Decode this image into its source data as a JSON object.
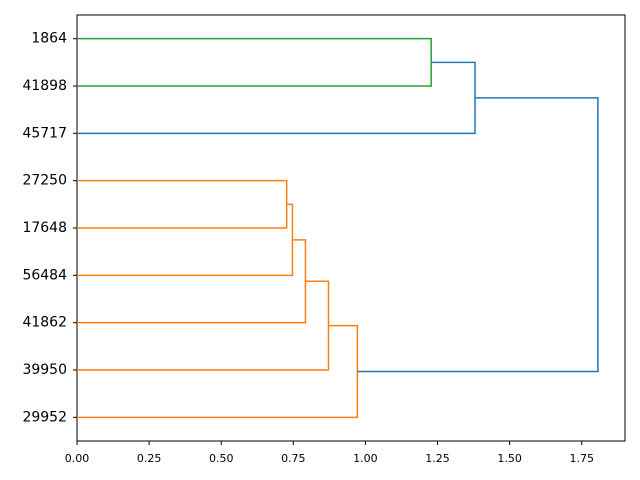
{
  "chart_data": {
    "type": "dendrogram",
    "orientation": "right",
    "leaves": [
      "1864",
      "41898",
      "45717",
      "27250",
      "17648",
      "56484",
      "41862",
      "39950",
      "29952"
    ],
    "links": [
      {
        "children": [
          3,
          4
        ],
        "height": 0.727,
        "color": "#ff7f0e"
      },
      {
        "children": [
          9,
          5
        ],
        "height": 0.747,
        "color": "#ff7f0e"
      },
      {
        "children": [
          10,
          6
        ],
        "height": 0.792,
        "color": "#ff7f0e"
      },
      {
        "children": [
          11,
          7
        ],
        "height": 0.872,
        "color": "#ff7f0e"
      },
      {
        "children": [
          12,
          8
        ],
        "height": 0.972,
        "color": "#ff7f0e"
      },
      {
        "children": [
          0,
          1
        ],
        "height": 1.228,
        "color": "#2ca02c"
      },
      {
        "children": [
          14,
          2
        ],
        "height": 1.38,
        "color": "#1f77b4"
      },
      {
        "children": [
          15,
          13
        ],
        "height": 1.806,
        "color": "#1f77b4"
      }
    ],
    "xlim": [
      0,
      1.9
    ],
    "xticks": [
      {
        "value": 0,
        "label": "0.00"
      },
      {
        "value": 0.25,
        "label": "0.25"
      },
      {
        "value": 0.5,
        "label": "0.50"
      },
      {
        "value": 0.75,
        "label": "0.75"
      },
      {
        "value": 1,
        "label": "1.00"
      },
      {
        "value": 1.25,
        "label": "1.25"
      },
      {
        "value": 1.5,
        "label": "1.50"
      },
      {
        "value": 1.75,
        "label": "1.75"
      }
    ]
  }
}
